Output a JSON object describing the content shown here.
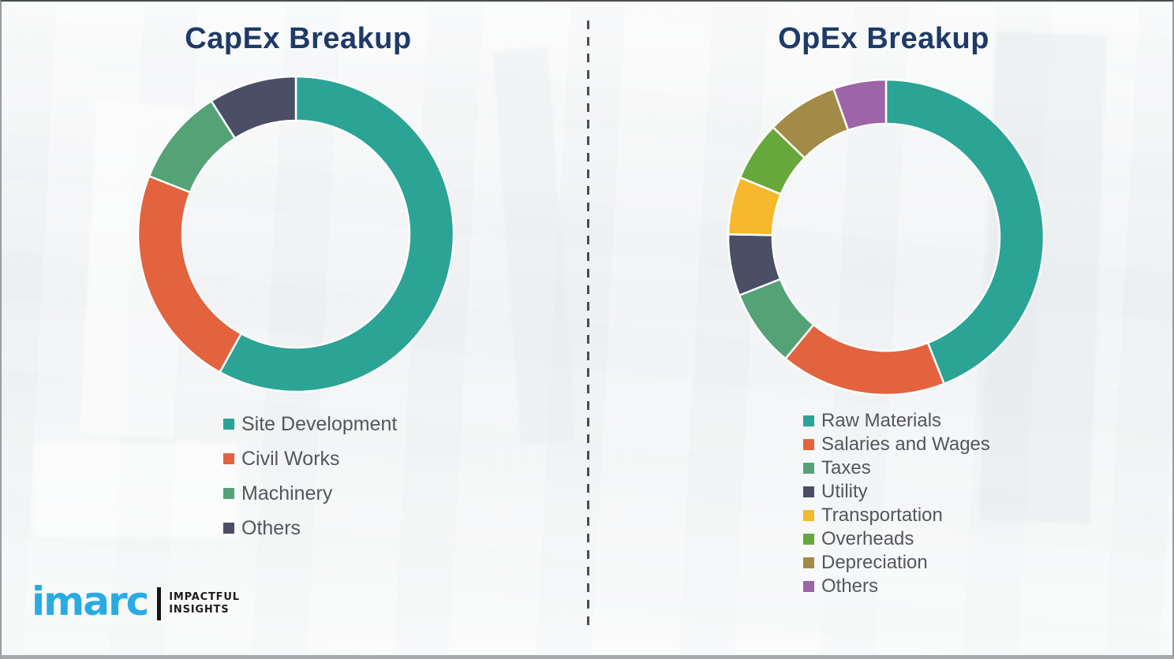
{
  "titles": {
    "capex": "CapEx Breakup",
    "opex": "OpEx Breakup"
  },
  "chart_data": [
    {
      "type": "pie",
      "subtype": "donut",
      "title": "CapEx Breakup",
      "labels": [
        "Site Development",
        "Civil Works",
        "Machinery",
        "Others"
      ],
      "values": [
        58,
        23,
        10,
        9
      ],
      "unit": "percent-share",
      "colors": [
        "#2ba495",
        "#e2633e",
        "#55a277",
        "#4a4f66"
      ],
      "start_angle_deg": 0,
      "direction": "clockwise",
      "inner_radius_ratio": 0.72,
      "legend_position": "below"
    },
    {
      "type": "pie",
      "subtype": "donut",
      "title": "OpEx Breakup",
      "labels": [
        "Raw Materials",
        "Salaries and Wages",
        "Taxes",
        "Utility",
        "Transportation",
        "Overheads",
        "Depreciation",
        "Others"
      ],
      "values": [
        44,
        17,
        8,
        6.3,
        5.9,
        6.1,
        7.3,
        5.4
      ],
      "unit": "percent-share",
      "colors": [
        "#2ba495",
        "#e2633e",
        "#55a277",
        "#4a4f66",
        "#f6b82c",
        "#67a83d",
        "#a28b46",
        "#9d64a8"
      ],
      "start_angle_deg": 0,
      "direction": "clockwise",
      "inner_radius_ratio": 0.72,
      "legend_position": "below"
    }
  ],
  "logo": {
    "brand": "imarc",
    "tagline1": "IMPACTFUL",
    "tagline2": "INSIGHTS",
    "brand_color": "#29abe2"
  },
  "style": {
    "title_color": "#1f3a68",
    "legend_text_color": "#55565a",
    "divider_color": "#4c4c4e",
    "background_color": "#f3f4f5",
    "segment_separator_color": "#ffffff"
  }
}
